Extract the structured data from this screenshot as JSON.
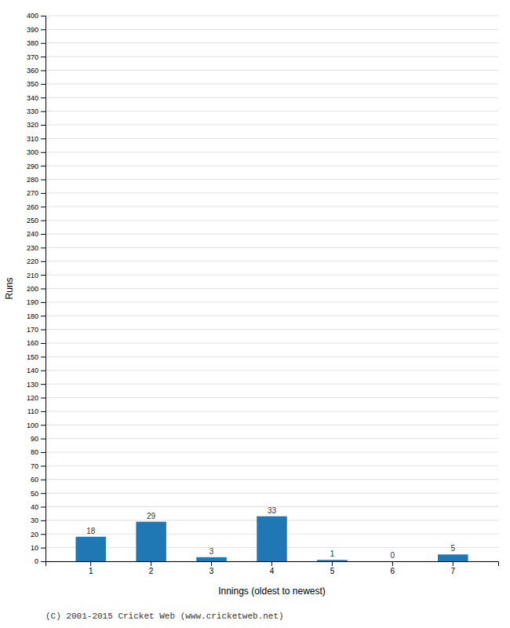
{
  "chart_data": {
    "type": "bar",
    "categories": [
      "1",
      "2",
      "3",
      "4",
      "5",
      "6",
      "7"
    ],
    "values": [
      18,
      29,
      3,
      33,
      1,
      0,
      5
    ],
    "ylabel": "Runs",
    "xlabel": "Innings (oldest to newest)",
    "ylim": [
      0,
      400
    ],
    "yticks": [
      0,
      10,
      20,
      30,
      40,
      50,
      60,
      70,
      80,
      90,
      100,
      110,
      120,
      130,
      140,
      150,
      160,
      170,
      180,
      190,
      200,
      210,
      220,
      230,
      240,
      250,
      260,
      270,
      280,
      290,
      300,
      310,
      320,
      330,
      340,
      350,
      360,
      370,
      380,
      390,
      400
    ],
    "grid": true,
    "data_labels": true,
    "annotations": [
      "(C) 2001-2015 Cricket Web (www.cricketweb.net)"
    ]
  }
}
